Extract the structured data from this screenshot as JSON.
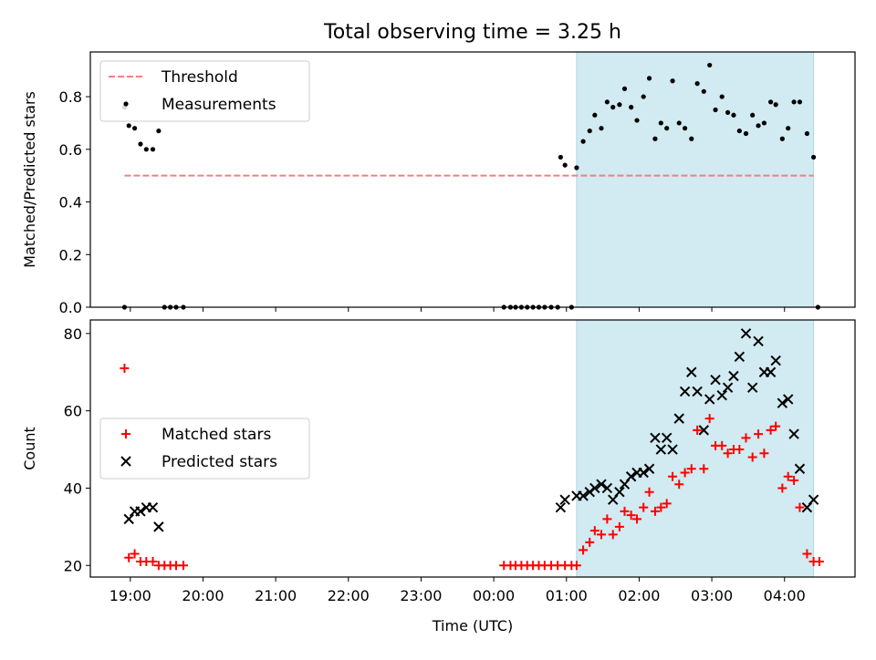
{
  "title": "Total observing time = 3.25 h",
  "colors": {
    "threshold": "#f08080",
    "measurement": "#000000",
    "matched": "#ff0000",
    "predicted": "#000000",
    "observing_span": "#add8e6"
  },
  "xaxis": {
    "label": "Time (UTC)",
    "range_hours": [
      18.45,
      28.97
    ],
    "ticks": [
      {
        "v": 19,
        "label": "19:00"
      },
      {
        "v": 20,
        "label": "20:00"
      },
      {
        "v": 21,
        "label": "21:00"
      },
      {
        "v": 22,
        "label": "22:00"
      },
      {
        "v": 23,
        "label": "23:00"
      },
      {
        "v": 24,
        "label": "00:00"
      },
      {
        "v": 25,
        "label": "01:00"
      },
      {
        "v": 26,
        "label": "02:00"
      },
      {
        "v": 27,
        "label": "03:00"
      },
      {
        "v": 28,
        "label": "04:00"
      }
    ]
  },
  "chart_data": [
    {
      "type": "scatter",
      "ylabel": "Matched/Predicted stars",
      "ylim": [
        0,
        0.97
      ],
      "yticks": [
        0.0,
        0.2,
        0.4,
        0.6,
        0.8
      ],
      "ytick_labels": [
        "0.0",
        "0.2",
        "0.4",
        "0.6",
        "0.8"
      ],
      "legend_position": "upper-left",
      "span": [
        25.14,
        28.4
      ],
      "threshold": {
        "name": "Threshold",
        "y": 0.5,
        "x": [
          18.92,
          28.4
        ]
      },
      "series": [
        {
          "name": "Measurements",
          "marker": "dot",
          "points": [
            [
              18.92,
              0.76
            ],
            [
              18.92,
              0.0
            ],
            [
              18.98,
              0.69
            ],
            [
              19.06,
              0.68
            ],
            [
              19.14,
              0.62
            ],
            [
              19.22,
              0.6
            ],
            [
              19.31,
              0.6
            ],
            [
              19.39,
              0.67
            ],
            [
              19.47,
              0.0
            ],
            [
              19.55,
              0.0
            ],
            [
              19.63,
              0.0
            ],
            [
              19.73,
              0.0
            ],
            [
              24.14,
              0.0
            ],
            [
              24.23,
              0.0
            ],
            [
              24.3,
              0.0
            ],
            [
              24.38,
              0.0
            ],
            [
              24.46,
              0.0
            ],
            [
              24.54,
              0.0
            ],
            [
              24.62,
              0.0
            ],
            [
              24.7,
              0.0
            ],
            [
              24.79,
              0.0
            ],
            [
              24.88,
              0.0
            ],
            [
              24.92,
              0.57
            ],
            [
              24.98,
              0.54
            ],
            [
              25.07,
              0.0
            ],
            [
              25.14,
              0.53
            ],
            [
              25.23,
              0.63
            ],
            [
              25.32,
              0.67
            ],
            [
              25.39,
              0.73
            ],
            [
              25.48,
              0.68
            ],
            [
              25.56,
              0.78
            ],
            [
              25.64,
              0.76
            ],
            [
              25.73,
              0.77
            ],
            [
              25.8,
              0.83
            ],
            [
              25.89,
              0.76
            ],
            [
              25.97,
              0.71
            ],
            [
              26.06,
              0.8
            ],
            [
              26.14,
              0.87
            ],
            [
              26.22,
              0.64
            ],
            [
              26.3,
              0.7
            ],
            [
              26.38,
              0.68
            ],
            [
              26.46,
              0.86
            ],
            [
              26.55,
              0.7
            ],
            [
              26.63,
              0.68
            ],
            [
              26.72,
              0.64
            ],
            [
              26.8,
              0.85
            ],
            [
              26.89,
              0.82
            ],
            [
              26.97,
              0.92
            ],
            [
              27.05,
              0.75
            ],
            [
              27.14,
              0.8
            ],
            [
              27.22,
              0.74
            ],
            [
              27.3,
              0.73
            ],
            [
              27.38,
              0.67
            ],
            [
              27.47,
              0.66
            ],
            [
              27.56,
              0.73
            ],
            [
              27.64,
              0.69
            ],
            [
              27.72,
              0.7
            ],
            [
              27.81,
              0.78
            ],
            [
              27.88,
              0.77
            ],
            [
              27.97,
              0.64
            ],
            [
              28.05,
              0.68
            ],
            [
              28.13,
              0.78
            ],
            [
              28.21,
              0.78
            ],
            [
              28.31,
              0.66
            ],
            [
              28.4,
              0.57
            ],
            [
              28.46,
              0.0
            ]
          ]
        }
      ]
    },
    {
      "type": "scatter",
      "ylabel": "Count",
      "ylim": [
        17,
        83.5
      ],
      "yticks": [
        20,
        40,
        60,
        80
      ],
      "ytick_labels": [
        "20",
        "40",
        "60",
        "80"
      ],
      "legend_position": "center-left",
      "span": [
        25.14,
        28.4
      ],
      "series": [
        {
          "name": "Matched stars",
          "marker": "plus",
          "points": [
            [
              18.92,
              71
            ],
            [
              18.98,
              22
            ],
            [
              19.06,
              23
            ],
            [
              19.14,
              21
            ],
            [
              19.22,
              21
            ],
            [
              19.31,
              21
            ],
            [
              19.39,
              20
            ],
            [
              19.47,
              20
            ],
            [
              19.55,
              20
            ],
            [
              19.63,
              20
            ],
            [
              19.73,
              20
            ],
            [
              24.14,
              20
            ],
            [
              24.23,
              20
            ],
            [
              24.3,
              20
            ],
            [
              24.38,
              20
            ],
            [
              24.46,
              20
            ],
            [
              24.54,
              20
            ],
            [
              24.62,
              20
            ],
            [
              24.7,
              20
            ],
            [
              24.79,
              20
            ],
            [
              24.88,
              20
            ],
            [
              24.98,
              20
            ],
            [
              25.07,
              20
            ],
            [
              25.14,
              20
            ],
            [
              25.23,
              24
            ],
            [
              25.32,
              26
            ],
            [
              25.39,
              29
            ],
            [
              25.48,
              28
            ],
            [
              25.56,
              32
            ],
            [
              25.64,
              28
            ],
            [
              25.73,
              30
            ],
            [
              25.8,
              34
            ],
            [
              25.89,
              33
            ],
            [
              25.97,
              32
            ],
            [
              26.06,
              35
            ],
            [
              26.14,
              39
            ],
            [
              26.22,
              34
            ],
            [
              26.3,
              35
            ],
            [
              26.38,
              36
            ],
            [
              26.46,
              43
            ],
            [
              26.55,
              41
            ],
            [
              26.63,
              44
            ],
            [
              26.72,
              45
            ],
            [
              26.8,
              55
            ],
            [
              26.89,
              45
            ],
            [
              26.97,
              58
            ],
            [
              27.05,
              51
            ],
            [
              27.14,
              51
            ],
            [
              27.22,
              49
            ],
            [
              27.3,
              50
            ],
            [
              27.38,
              50
            ],
            [
              27.47,
              53
            ],
            [
              27.56,
              48
            ],
            [
              27.64,
              54
            ],
            [
              27.72,
              49
            ],
            [
              27.81,
              55
            ],
            [
              27.88,
              56
            ],
            [
              27.97,
              40
            ],
            [
              28.05,
              43
            ],
            [
              28.13,
              42
            ],
            [
              28.21,
              35
            ],
            [
              28.31,
              23
            ],
            [
              28.4,
              21
            ],
            [
              28.48,
              21
            ]
          ]
        },
        {
          "name": "Predicted stars",
          "marker": "x",
          "points": [
            [
              18.98,
              32
            ],
            [
              19.06,
              34
            ],
            [
              19.14,
              34
            ],
            [
              19.22,
              35
            ],
            [
              19.31,
              35
            ],
            [
              19.39,
              30
            ],
            [
              24.92,
              35
            ],
            [
              24.98,
              37
            ],
            [
              25.14,
              38
            ],
            [
              25.23,
              38
            ],
            [
              25.32,
              39
            ],
            [
              25.39,
              40
            ],
            [
              25.48,
              41
            ],
            [
              25.56,
              40
            ],
            [
              25.64,
              37
            ],
            [
              25.73,
              39
            ],
            [
              25.8,
              41
            ],
            [
              25.89,
              43
            ],
            [
              25.97,
              44
            ],
            [
              26.06,
              44
            ],
            [
              26.14,
              45
            ],
            [
              26.22,
              53
            ],
            [
              26.3,
              50
            ],
            [
              26.38,
              53
            ],
            [
              26.46,
              50
            ],
            [
              26.55,
              58
            ],
            [
              26.63,
              65
            ],
            [
              26.72,
              70
            ],
            [
              26.8,
              65
            ],
            [
              26.89,
              55
            ],
            [
              26.97,
              63
            ],
            [
              27.05,
              68
            ],
            [
              27.14,
              64
            ],
            [
              27.22,
              66
            ],
            [
              27.3,
              69
            ],
            [
              27.38,
              74
            ],
            [
              27.47,
              80
            ],
            [
              27.56,
              66
            ],
            [
              27.64,
              78
            ],
            [
              27.72,
              70
            ],
            [
              27.81,
              70
            ],
            [
              27.88,
              73
            ],
            [
              27.97,
              62
            ],
            [
              28.05,
              63
            ],
            [
              28.13,
              54
            ],
            [
              28.21,
              45
            ],
            [
              28.31,
              35
            ],
            [
              28.4,
              37
            ]
          ]
        }
      ]
    }
  ]
}
